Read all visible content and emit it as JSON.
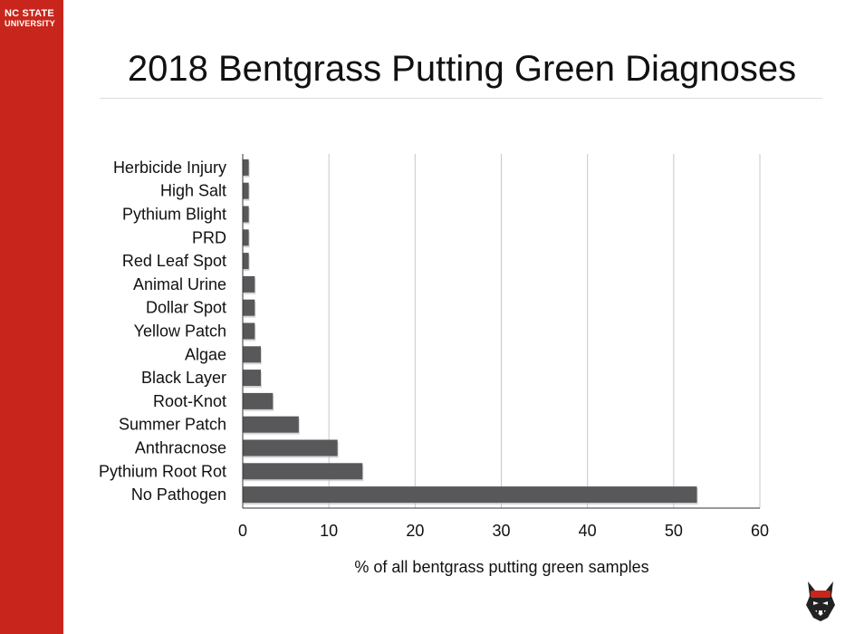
{
  "brand": {
    "line1": "NC STATE",
    "line2": "UNIVERSITY"
  },
  "colors": {
    "sidebar": "#c8261c",
    "bar": "#58585b",
    "grid": "#c8c8c8"
  },
  "icons": {
    "mascot": "wolf-mascot-icon"
  },
  "chart_data": {
    "type": "bar",
    "orientation": "horizontal",
    "title": "2018 Bentgrass Putting Green Diagnoses",
    "xlabel": "% of all bentgrass putting green samples",
    "ylabel": "",
    "xlim": [
      0,
      60
    ],
    "xticks": [
      0,
      10,
      20,
      30,
      40,
      50,
      60
    ],
    "grid": true,
    "categories": [
      "Herbicide Injury",
      "High Salt",
      "Pythium Blight",
      "PRD",
      "Red Leaf Spot",
      "Animal Urine",
      "Dollar Spot",
      "Yellow Patch",
      "Algae",
      "Black Layer",
      "Root-Knot",
      "Summer Patch",
      "Anthracnose",
      "Pythium Root Rot",
      "No Pathogen"
    ],
    "values": [
      0.7,
      0.7,
      0.7,
      0.7,
      0.7,
      1.4,
      1.4,
      1.4,
      2.1,
      2.1,
      3.5,
      6.5,
      11.0,
      13.9,
      52.7
    ]
  }
}
